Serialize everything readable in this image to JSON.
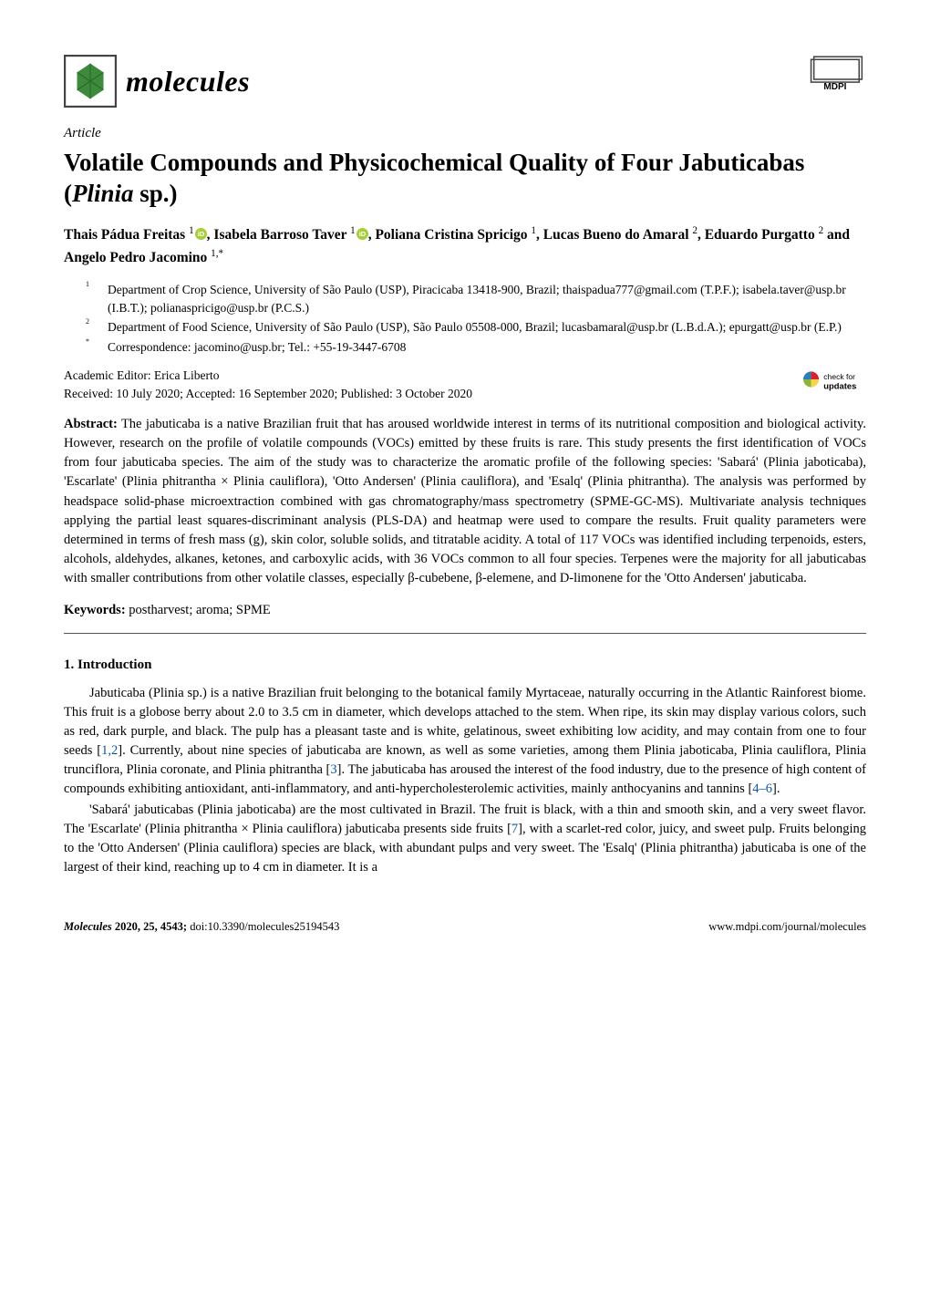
{
  "header": {
    "journal_name": "molecules",
    "publisher": "MDPI",
    "logo_colors": {
      "leaf": "#3d8a3d",
      "box_border": "#444444"
    }
  },
  "article": {
    "type": "Article",
    "title": "Volatile Compounds and Physicochemical Quality of Four Jabuticabas (Plinia sp.)",
    "title_plain_prefix": "Volatile Compounds and Physicochemical Quality of Four Jabuticabas (",
    "title_italic": "Plinia",
    "title_plain_suffix": " sp.)"
  },
  "authors_line": "Thais Pádua Freitas ¹ , Isabela Barroso Taver ¹ , Poliana Cristina Spricigo ¹, Lucas Bueno do Amaral ², Eduardo Purgatto ² and Angelo Pedro Jacomino ¹,*",
  "authors": [
    {
      "name": "Thais Pádua Freitas",
      "aff": "1",
      "orcid": true,
      "comma": ", "
    },
    {
      "name": "Isabela Barroso Taver",
      "aff": "1",
      "orcid": true,
      "comma": ", "
    },
    {
      "name": "Poliana Cristina Spricigo",
      "aff": "1",
      "orcid": false,
      "comma": ", "
    },
    {
      "name": "Lucas Bueno do Amaral",
      "aff": "2",
      "orcid": false,
      "comma": ", "
    },
    {
      "name": "Eduardo Purgatto",
      "aff": "2",
      "orcid": false,
      "comma": " and "
    },
    {
      "name": "Angelo Pedro Jacomino",
      "aff": "1,*",
      "orcid": false,
      "comma": ""
    }
  ],
  "affiliations": [
    {
      "num": "1",
      "text": "Department of Crop Science, University of São Paulo (USP), Piracicaba 13418-900, Brazil; thaispadua777@gmail.com (T.P.F.); isabela.taver@usp.br (I.B.T.); polianaspricigo@usp.br (P.C.S.)"
    },
    {
      "num": "2",
      "text": "Department of Food Science, University of São Paulo (USP), São Paulo 05508-000, Brazil; lucasbamaral@usp.br (L.B.d.A.); epurgatt@usp.br (E.P.)"
    },
    {
      "num": "*",
      "text": "Correspondence: jacomino@usp.br; Tel.: +55-19-3447-6708"
    }
  ],
  "editor_line": "Academic Editor: Erica Liberto",
  "dates_line": "Received: 10 July 2020; Accepted: 16 September 2020; Published: 3 October 2020",
  "updates_badge": {
    "text_top": "check for",
    "text_bottom": "updates"
  },
  "abstract": {
    "label": "Abstract:",
    "text": "The jabuticaba is a native Brazilian fruit that has aroused worldwide interest in terms of its nutritional composition and biological activity. However, research on the profile of volatile compounds (VOCs) emitted by these fruits is rare. This study presents the first identification of VOCs from four jabuticaba species. The aim of the study was to characterize the aromatic profile of the following species: 'Sabará' (Plinia jaboticaba), 'Escarlate' (Plinia phitrantha × Plinia cauliflora), 'Otto Andersen' (Plinia cauliflora), and 'Esalq' (Plinia phitrantha). The analysis was performed by headspace solid-phase microextraction combined with gas chromatography/mass spectrometry (SPME-GC-MS). Multivariate analysis techniques applying the partial least squares-discriminant analysis (PLS-DA) and heatmap were used to compare the results. Fruit quality parameters were determined in terms of fresh mass (g), skin color, soluble solids, and titratable acidity. A total of 117 VOCs was identified including terpenoids, esters, alcohols, aldehydes, alkanes, ketones, and carboxylic acids, with 36 VOCs common to all four species. Terpenes were the majority for all jabuticabas with smaller contributions from other volatile classes, especially β-cubebene, β-elemene, and D-limonene for the 'Otto Andersen' jabuticaba."
  },
  "keywords": {
    "label": "Keywords:",
    "text": "postharvest; aroma; SPME"
  },
  "section1": {
    "heading": "1. Introduction",
    "para1": "Jabuticaba (Plinia sp.) is a native Brazilian fruit belonging to the botanical family Myrtaceae, naturally occurring in the Atlantic Rainforest biome. This fruit is a globose berry about 2.0 to 3.5 cm in diameter, which develops attached to the stem. When ripe, its skin may display various colors, such as red, dark purple, and black. The pulp has a pleasant taste and is white, gelatinous, sweet exhibiting low acidity, and may contain from one to four seeds [1,2]. Currently, about nine species of jabuticaba are known, as well as some varieties, among them Plinia jaboticaba, Plinia cauliflora, Plinia trunciflora, Plinia coronate, and Plinia phitrantha [3]. The jabuticaba has aroused the interest of the food industry, due to the presence of high content of compounds exhibiting antioxidant, anti-inflammatory, and anti-hypercholesterolemic activities, mainly anthocyanins and tannins [4–6].",
    "para2": "'Sabará' jabuticabas (Plinia jaboticaba) are the most cultivated in Brazil. The fruit is black, with a thin and smooth skin, and a very sweet flavor. The 'Escarlate' (Plinia phitrantha × Plinia cauliflora) jabuticaba presents side fruits [7], with a scarlet-red color, juicy, and sweet pulp. Fruits belonging to the 'Otto Andersen' (Plinia cauliflora) species are black, with abundant pulps and very sweet. The 'Esalq' (Plinia phitrantha) jabuticaba is one of the largest of their kind, reaching up to 4 cm in diameter. It is a",
    "citations": [
      "1",
      "2",
      "3",
      "4",
      "6",
      "7"
    ]
  },
  "footer": {
    "left_journal": "Molecules",
    "left_year_vol": "2020, 25, 4543;",
    "left_doi": "doi:10.3390/molecules25194543",
    "right": "www.mdpi.com/journal/molecules"
  },
  "colors": {
    "text": "#000000",
    "citation_link": "#0b57a4",
    "orcid_green": "#a6ce39",
    "updates_red": "#d8232a",
    "updates_yellow": "#f6d44d",
    "updates_green": "#8fb339",
    "updates_blue": "#2a7fb8"
  }
}
